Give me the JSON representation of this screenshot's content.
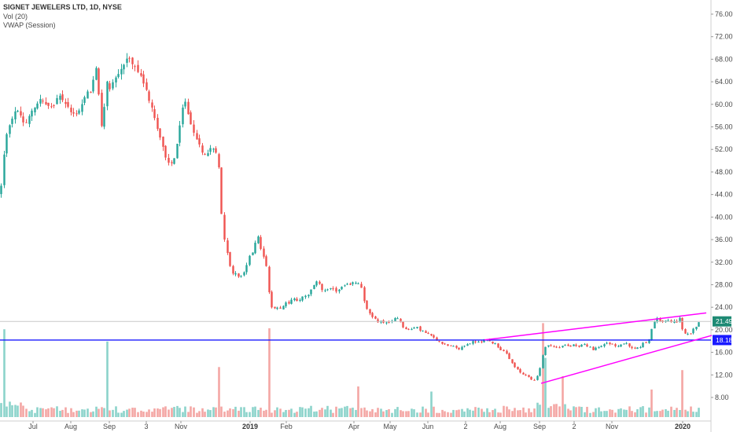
{
  "legend": {
    "title": "SIGNET JEWELERS LTD, 1D, NYSE",
    "volume": "Vol (20)",
    "vwap": "VWAP (Session)"
  },
  "colors": {
    "up": "#26a69a",
    "down": "#ef5350",
    "up_vol": "#8cd3cb",
    "down_vol": "#f4a6a4",
    "horizontal_line": "#1a1aff",
    "trendline": "#ff00ff",
    "last_price_bg": "#1e8a74",
    "level_bg": "#1a1aff",
    "axis_text": "#4a4a4a"
  },
  "chart_data": {
    "type": "candlestick",
    "title": "SIGNET JEWELERS LTD, 1D, NYSE",
    "y_axis_side": "right",
    "ylim": [
      4,
      78
    ],
    "y_ticks": [
      "76.00",
      "72.00",
      "68.00",
      "64.00",
      "60.00",
      "56.00",
      "52.00",
      "48.00",
      "44.00",
      "40.00",
      "36.00",
      "32.00",
      "28.00",
      "24.00",
      "20.00",
      "16.00",
      "12.00",
      "8.00"
    ],
    "x_ticks": [
      {
        "label": "Jul",
        "bold": false
      },
      {
        "label": "Aug",
        "bold": false
      },
      {
        "label": "Sep",
        "bold": false
      },
      {
        "label": "3",
        "bold": false
      },
      {
        "label": "Nov",
        "bold": false
      },
      {
        "label": "2019",
        "bold": true
      },
      {
        "label": "Feb",
        "bold": false
      },
      {
        "label": "Apr",
        "bold": false
      },
      {
        "label": "May",
        "bold": false
      },
      {
        "label": "Jun",
        "bold": false
      },
      {
        "label": "2",
        "bold": false
      },
      {
        "label": "Aug",
        "bold": false
      },
      {
        "label": "Sep",
        "bold": false
      },
      {
        "label": "2",
        "bold": false
      },
      {
        "label": "Nov",
        "bold": false
      },
      {
        "label": "2020",
        "bold": true
      }
    ],
    "price_path": [
      [
        0,
        44
      ],
      [
        4,
        51
      ],
      [
        10,
        56
      ],
      [
        18,
        59
      ],
      [
        26,
        58
      ],
      [
        32,
        56
      ],
      [
        40,
        59
      ],
      [
        50,
        61
      ],
      [
        58,
        60
      ],
      [
        66,
        59
      ],
      [
        75,
        62
      ],
      [
        84,
        60
      ],
      [
        92,
        58
      ],
      [
        100,
        59
      ],
      [
        108,
        61
      ],
      [
        116,
        63
      ],
      [
        122,
        66
      ],
      [
        128,
        57
      ],
      [
        131,
        55
      ],
      [
        134,
        65
      ],
      [
        140,
        63
      ],
      [
        148,
        65
      ],
      [
        156,
        67
      ],
      [
        162,
        68
      ],
      [
        168,
        67
      ],
      [
        174,
        66
      ],
      [
        180,
        64
      ],
      [
        186,
        62
      ],
      [
        192,
        60
      ],
      [
        198,
        57
      ],
      [
        204,
        54
      ],
      [
        210,
        51
      ],
      [
        216,
        49
      ],
      [
        222,
        51
      ],
      [
        228,
        56
      ],
      [
        232,
        59
      ],
      [
        236,
        61
      ],
      [
        240,
        58
      ],
      [
        245,
        55
      ],
      [
        250,
        54
      ],
      [
        256,
        52
      ],
      [
        262,
        51
      ],
      [
        268,
        53
      ],
      [
        274,
        52
      ],
      [
        278,
        49
      ],
      [
        280,
        44
      ],
      [
        283,
        37
      ],
      [
        287,
        35
      ],
      [
        291,
        32
      ],
      [
        295,
        30
      ],
      [
        300,
        30
      ],
      [
        305,
        29
      ],
      [
        309,
        30
      ],
      [
        313,
        31
      ],
      [
        317,
        33
      ],
      [
        321,
        34
      ],
      [
        326,
        37
      ],
      [
        330,
        35
      ],
      [
        334,
        33
      ],
      [
        338,
        32
      ],
      [
        341,
        27
      ],
      [
        345,
        24
      ],
      [
        350,
        24
      ],
      [
        356,
        24
      ],
      [
        362,
        24.5
      ],
      [
        368,
        25
      ],
      [
        374,
        25.5
      ],
      [
        380,
        25
      ],
      [
        386,
        26
      ],
      [
        392,
        26
      ],
      [
        398,
        28
      ],
      [
        404,
        28.5
      ],
      [
        410,
        27
      ],
      [
        416,
        27.5
      ],
      [
        422,
        27
      ],
      [
        428,
        27
      ],
      [
        434,
        27.5
      ],
      [
        440,
        28
      ],
      [
        446,
        28
      ],
      [
        452,
        28.5
      ],
      [
        458,
        28
      ],
      [
        463,
        25
      ],
      [
        468,
        23
      ],
      [
        474,
        22
      ],
      [
        480,
        21.5
      ],
      [
        486,
        21.5
      ],
      [
        492,
        21
      ],
      [
        498,
        21.5
      ],
      [
        504,
        22.5
      ],
      [
        510,
        21
      ],
      [
        516,
        20
      ],
      [
        522,
        20
      ],
      [
        528,
        20.5
      ],
      [
        534,
        20
      ],
      [
        540,
        19.5
      ],
      [
        546,
        19
      ],
      [
        552,
        18.5
      ],
      [
        558,
        18
      ],
      [
        564,
        17.5
      ],
      [
        570,
        17
      ],
      [
        576,
        17
      ],
      [
        582,
        16.5
      ],
      [
        588,
        17
      ],
      [
        594,
        17.5
      ],
      [
        600,
        17.8
      ],
      [
        606,
        18
      ],
      [
        612,
        18
      ],
      [
        618,
        18.2
      ],
      [
        624,
        17.8
      ],
      [
        630,
        17.5
      ],
      [
        636,
        16.5
      ],
      [
        642,
        16
      ],
      [
        648,
        14.5
      ],
      [
        654,
        13.5
      ],
      [
        660,
        12.5
      ],
      [
        666,
        12
      ],
      [
        672,
        11.5
      ],
      [
        678,
        11
      ],
      [
        684,
        12
      ],
      [
        688,
        14.5
      ],
      [
        694,
        17.5
      ],
      [
        700,
        17
      ],
      [
        706,
        16.8
      ],
      [
        712,
        17
      ],
      [
        718,
        17.3
      ],
      [
        724,
        17
      ],
      [
        730,
        17.5
      ],
      [
        736,
        17
      ],
      [
        742,
        17.5
      ],
      [
        748,
        17
      ],
      [
        754,
        16.5
      ],
      [
        760,
        16.8
      ],
      [
        766,
        17.5
      ],
      [
        772,
        17.5
      ],
      [
        778,
        17.5
      ],
      [
        784,
        17
      ],
      [
        790,
        17.5
      ],
      [
        796,
        17.5
      ],
      [
        802,
        16.8
      ],
      [
        808,
        16.5
      ],
      [
        814,
        17
      ],
      [
        818,
        18
      ],
      [
        822,
        17.5
      ],
      [
        826,
        19
      ],
      [
        830,
        21
      ],
      [
        836,
        22
      ],
      [
        842,
        21.5
      ],
      [
        848,
        22
      ],
      [
        854,
        21.5
      ],
      [
        860,
        21.5
      ],
      [
        864,
        22
      ],
      [
        868,
        19.5
      ],
      [
        873,
        19
      ],
      [
        878,
        19.5
      ],
      [
        884,
        20.5
      ],
      [
        888,
        21.5
      ]
    ],
    "volume_spikes": [
      {
        "x": 3,
        "v": 0.86,
        "up": true
      },
      {
        "x": 135,
        "v": 0.74,
        "up": true
      },
      {
        "x": 278,
        "v": 0.49,
        "up": false
      },
      {
        "x": 341,
        "v": 0.87,
        "up": false
      },
      {
        "x": 456,
        "v": 0.3,
        "up": false
      },
      {
        "x": 548,
        "v": 0.25,
        "up": true
      },
      {
        "x": 688,
        "v": 0.92,
        "up": false
      },
      {
        "x": 692,
        "v": 0.58,
        "up": true
      },
      {
        "x": 712,
        "v": 0.4,
        "up": false
      },
      {
        "x": 828,
        "v": 0.27,
        "up": false
      },
      {
        "x": 866,
        "v": 0.46,
        "up": false
      }
    ],
    "annotations": {
      "horizontal_level": 18.18,
      "upper_trendline": [
        [
          616,
          18.2
        ],
        [
          898,
          23.0
        ]
      ],
      "lower_trendline": [
        [
          688,
          10.5
        ],
        [
          905,
          19.0
        ]
      ],
      "last_price_line": 21.49
    }
  },
  "price_labels": {
    "last": "21.49",
    "level": "18.18"
  }
}
